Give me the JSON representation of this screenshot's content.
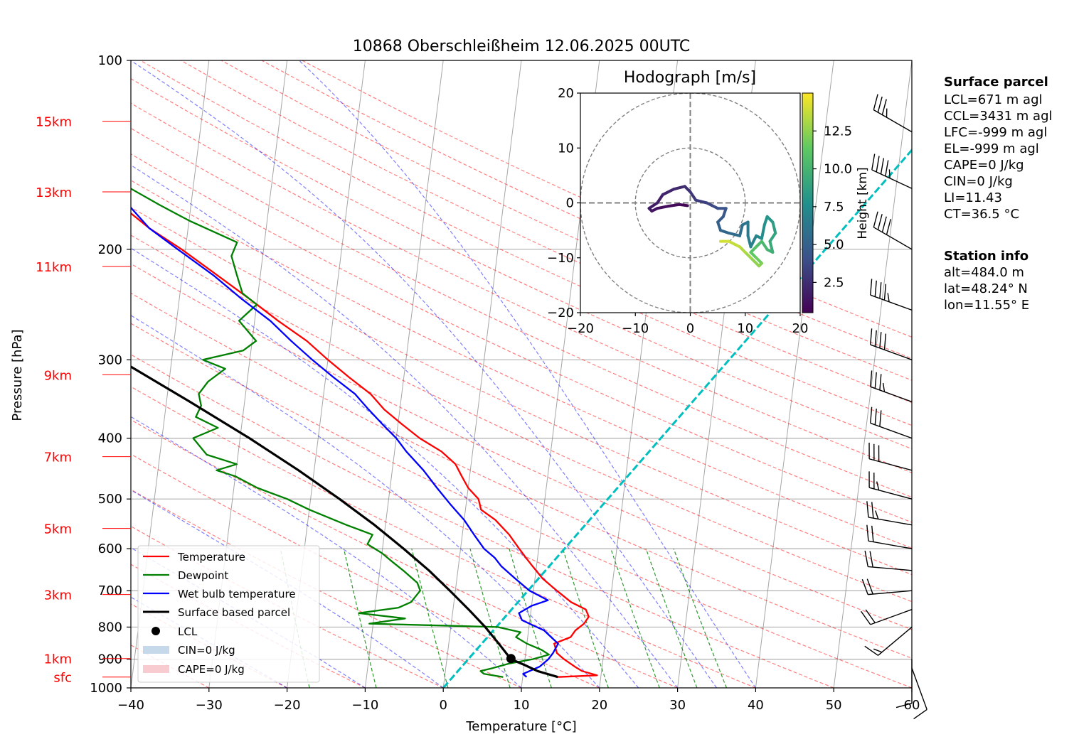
{
  "chart_data": {
    "type": "line",
    "title": "10868 Oberschleißheim 12.06.2025 00UTC",
    "xlabel": "Temperature [°C]",
    "ylabel": "Pressure [hPa]",
    "xlim": [
      -40,
      60
    ],
    "ylim": [
      1000,
      100
    ],
    "y_scale": "log",
    "x_ticks": [
      "−40",
      "−30",
      "−20",
      "−10",
      "0",
      "10",
      "20",
      "30",
      "40",
      "50",
      "60"
    ],
    "y_ticks": [
      "100",
      "200",
      "300",
      "400",
      "500",
      "600",
      "700",
      "800",
      "900",
      "1000"
    ],
    "height_labels": [
      {
        "label": "15km",
        "p": 125
      },
      {
        "label": "13km",
        "p": 162
      },
      {
        "label": "11km",
        "p": 213
      },
      {
        "label": "9km",
        "p": 317
      },
      {
        "label": "7km",
        "p": 428
      },
      {
        "label": "5km",
        "p": 557
      },
      {
        "label": "3km",
        "p": 710
      },
      {
        "label": "1km",
        "p": 898
      },
      {
        "label": "sfc",
        "p": 961
      }
    ],
    "height_label_color": "#ff0000",
    "grid": true,
    "legend_position": "lower-left",
    "series": [
      {
        "name": "Temperature",
        "color": "#ff0000",
        "points": [
          [
            961,
            14.5
          ],
          [
            955,
            19.5
          ],
          [
            940,
            17.5
          ],
          [
            925,
            16.5
          ],
          [
            900,
            15.0
          ],
          [
            880,
            14.0
          ],
          [
            850,
            13.5
          ],
          [
            830,
            15.5
          ],
          [
            810,
            16.0
          ],
          [
            790,
            17.0
          ],
          [
            770,
            17.5
          ],
          [
            750,
            17.0
          ],
          [
            730,
            15.0
          ],
          [
            700,
            13.0
          ],
          [
            670,
            11.0
          ],
          [
            640,
            9.5
          ],
          [
            620,
            8.5
          ],
          [
            600,
            7.5
          ],
          [
            570,
            6.0
          ],
          [
            540,
            4.0
          ],
          [
            520,
            2.0
          ],
          [
            500,
            1.5
          ],
          [
            480,
            0.0
          ],
          [
            460,
            -1.0
          ],
          [
            440,
            -2.0
          ],
          [
            420,
            -4.0
          ],
          [
            400,
            -7.0
          ],
          [
            380,
            -9.5
          ],
          [
            360,
            -12.0
          ],
          [
            340,
            -14.0
          ],
          [
            320,
            -17.0
          ],
          [
            300,
            -20.0
          ],
          [
            280,
            -23.0
          ],
          [
            260,
            -27.0
          ],
          [
            240,
            -31.0
          ],
          [
            220,
            -35.5
          ],
          [
            200,
            -40.5
          ],
          [
            185,
            -45.0
          ],
          [
            170,
            -49.0
          ],
          [
            160,
            -51.0
          ],
          [
            150,
            -54.0
          ],
          [
            140,
            -56.0
          ],
          [
            130,
            -57.0
          ],
          [
            124,
            -58.0
          ]
        ]
      },
      {
        "name": "Dewpoint",
        "color": "#008000",
        "points": [
          [
            961,
            7.5
          ],
          [
            950,
            5.0
          ],
          [
            940,
            4.5
          ],
          [
            930,
            6.0
          ],
          [
            915,
            8.0
          ],
          [
            900,
            11.0
          ],
          [
            885,
            13.0
          ],
          [
            870,
            12.0
          ],
          [
            850,
            10.0
          ],
          [
            830,
            8.5
          ],
          [
            815,
            9.0
          ],
          [
            800,
            6.0
          ],
          [
            790,
            -10.5
          ],
          [
            775,
            -6.0
          ],
          [
            760,
            -12.0
          ],
          [
            745,
            -7.0
          ],
          [
            730,
            -5.5
          ],
          [
            700,
            -4.5
          ],
          [
            680,
            -5.0
          ],
          [
            650,
            -7.0
          ],
          [
            630,
            -8.5
          ],
          [
            610,
            -10.0
          ],
          [
            590,
            -12.0
          ],
          [
            570,
            -11.5
          ],
          [
            550,
            -15.0
          ],
          [
            520,
            -20.0
          ],
          [
            500,
            -23.0
          ],
          [
            480,
            -27.0
          ],
          [
            460,
            -30.0
          ],
          [
            450,
            -32.5
          ],
          [
            440,
            -30.0
          ],
          [
            425,
            -34.0
          ],
          [
            400,
            -36.0
          ],
          [
            385,
            -33.0
          ],
          [
            370,
            -36.0
          ],
          [
            355,
            -35.5
          ],
          [
            340,
            -36.0
          ],
          [
            325,
            -35.0
          ],
          [
            310,
            -33.0
          ],
          [
            300,
            -36.0
          ],
          [
            290,
            -31.0
          ],
          [
            280,
            -29.5
          ],
          [
            260,
            -32.0
          ],
          [
            245,
            -30.0
          ],
          [
            235,
            -32.0
          ],
          [
            220,
            -33.0
          ],
          [
            205,
            -34.0
          ],
          [
            195,
            -33.5
          ],
          [
            180,
            -40.0
          ],
          [
            170,
            -44.0
          ],
          [
            160,
            -48.0
          ],
          [
            150,
            -52.0
          ],
          [
            140,
            -57.0
          ],
          [
            130,
            -62.0
          ],
          [
            124,
            -63.5
          ]
        ]
      },
      {
        "name": "Wet bulb temperature",
        "color": "#0000ff",
        "points": [
          [
            961,
            10.5
          ],
          [
            950,
            10.0
          ],
          [
            925,
            12.0
          ],
          [
            900,
            13.0
          ],
          [
            880,
            13.5
          ],
          [
            850,
            14.0
          ],
          [
            830,
            13.0
          ],
          [
            810,
            12.0
          ],
          [
            795,
            10.5
          ],
          [
            780,
            9.0
          ],
          [
            760,
            8.5
          ],
          [
            740,
            10.0
          ],
          [
            725,
            12.0
          ],
          [
            700,
            9.5
          ],
          [
            670,
            7.5
          ],
          [
            640,
            5.5
          ],
          [
            620,
            4.5
          ],
          [
            600,
            3.0
          ],
          [
            570,
            1.5
          ],
          [
            540,
            0.0
          ],
          [
            510,
            -2.0
          ],
          [
            480,
            -4.0
          ],
          [
            450,
            -6.0
          ],
          [
            420,
            -8.5
          ],
          [
            400,
            -10.0
          ],
          [
            380,
            -12.0
          ],
          [
            360,
            -14.0
          ],
          [
            340,
            -16.0
          ],
          [
            320,
            -19.0
          ],
          [
            300,
            -22.0
          ],
          [
            280,
            -25.0
          ],
          [
            260,
            -28.0
          ],
          [
            240,
            -32.0
          ],
          [
            220,
            -36.0
          ],
          [
            200,
            -41.0
          ],
          [
            185,
            -45.0
          ],
          [
            170,
            -48.0
          ],
          [
            160,
            -51.0
          ],
          [
            150,
            -54.5
          ],
          [
            140,
            -56.0
          ],
          [
            130,
            -57.5
          ],
          [
            124,
            -58.5
          ]
        ]
      },
      {
        "name": "Surface based parcel",
        "color": "#000000",
        "points": [
          [
            961,
            14.5
          ],
          [
            940,
            11.8
          ],
          [
            920,
            10.1
          ],
          [
            900,
            8.2
          ],
          [
            880,
            7.5
          ],
          [
            850,
            6.4
          ],
          [
            800,
            4.4
          ],
          [
            750,
            2.0
          ],
          [
            700,
            -0.7
          ],
          [
            650,
            -3.7
          ],
          [
            600,
            -7.3
          ],
          [
            550,
            -11.4
          ],
          [
            500,
            -16.3
          ],
          [
            450,
            -22.0
          ],
          [
            400,
            -28.8
          ],
          [
            350,
            -37.0
          ],
          [
            300,
            -46.7
          ],
          [
            250,
            -58.3
          ],
          [
            200,
            -72.4
          ],
          [
            150,
            -90.0
          ],
          [
            130,
            -98.0
          ]
        ]
      }
    ],
    "lcl": {
      "name": "LCL",
      "p": 898,
      "t": 8.2,
      "color": "#000000"
    },
    "cin_label": "CIN=0 J/kg",
    "cape_label": "CAPE=0 J/kg",
    "cin_color": "#9ec0dc",
    "cape_color": "#f2a9b0",
    "cyan_line": {
      "color": "#00bfbf",
      "points": [
        [
          1000,
          0
        ],
        [
          100,
          60
        ]
      ]
    },
    "dry_adiabat_color": "#ff0000",
    "moist_adiabat_color": "#0000ff",
    "mixing_ratio_color": "#008000",
    "isotherm_color": "#808080",
    "wind_barbs": [
      {
        "p": 130,
        "spd_kt": 35,
        "dir": 300
      },
      {
        "p": 160,
        "spd_kt": 45,
        "dir": 295
      },
      {
        "p": 200,
        "spd_kt": 40,
        "dir": 300
      },
      {
        "p": 250,
        "spd_kt": 45,
        "dir": 290
      },
      {
        "p": 300,
        "spd_kt": 40,
        "dir": 290
      },
      {
        "p": 350,
        "spd_kt": 35,
        "dir": 290
      },
      {
        "p": 400,
        "spd_kt": 30,
        "dir": 290
      },
      {
        "p": 450,
        "spd_kt": 30,
        "dir": 285
      },
      {
        "p": 500,
        "spd_kt": 25,
        "dir": 285
      },
      {
        "p": 550,
        "spd_kt": 25,
        "dir": 280
      },
      {
        "p": 600,
        "spd_kt": 20,
        "dir": 280
      },
      {
        "p": 650,
        "spd_kt": 20,
        "dir": 275
      },
      {
        "p": 700,
        "spd_kt": 20,
        "dir": 265
      },
      {
        "p": 750,
        "spd_kt": 20,
        "dir": 250
      },
      {
        "p": 800,
        "spd_kt": 15,
        "dir": 230
      },
      {
        "p": 900,
        "spd_kt": 10,
        "dir": 180
      },
      {
        "p": 930,
        "spd_kt": 10,
        "dir": 160
      }
    ],
    "hodograph": {
      "title": "Hodograph [m/s]",
      "xlim": [
        -20,
        20
      ],
      "ylim": [
        -20,
        20
      ],
      "ticks": [
        "−20",
        "−10",
        "0",
        "10",
        "20"
      ],
      "rings": [
        10,
        20
      ],
      "colorbar_label": "Height [km]",
      "colorbar_ticks": [
        "2.5",
        "5.0",
        "7.5",
        "10.0",
        "12.5"
      ],
      "colorbar_range": [
        0.5,
        15
      ],
      "points": [
        [
          -0.5,
          -0.5,
          0.5
        ],
        [
          -2,
          -0.3,
          0.7
        ],
        [
          -4,
          -0.6,
          0.9
        ],
        [
          -6,
          -1,
          1.1
        ],
        [
          -7,
          -1.5,
          1.3
        ],
        [
          -7.5,
          -1,
          1.5
        ],
        [
          -6,
          0,
          1.7
        ],
        [
          -5,
          1.5,
          1.9
        ],
        [
          -3,
          2.5,
          2.1
        ],
        [
          -1,
          3,
          2.3
        ],
        [
          0,
          2,
          2.6
        ],
        [
          1,
          0.5,
          2.9
        ],
        [
          3,
          0,
          3.2
        ],
        [
          4,
          -0.5,
          3.5
        ],
        [
          5,
          -1,
          3.8
        ],
        [
          6.5,
          -1,
          4.1
        ],
        [
          6,
          -2.5,
          4.4
        ],
        [
          5,
          -3.5,
          4.6
        ],
        [
          5.5,
          -5,
          4.9
        ],
        [
          7,
          -5.5,
          5.2
        ],
        [
          9,
          -6,
          5.5
        ],
        [
          9.5,
          -4,
          5.7
        ],
        [
          10.5,
          -3.5,
          6.0
        ],
        [
          10.5,
          -6,
          6.3
        ],
        [
          11,
          -8,
          6.6
        ],
        [
          12,
          -6,
          6.9
        ],
        [
          13,
          -6.5,
          7.2
        ],
        [
          13.5,
          -4,
          7.5
        ],
        [
          14,
          -2.5,
          7.8
        ],
        [
          15,
          -3.5,
          8.1
        ],
        [
          15.5,
          -5.5,
          8.5
        ],
        [
          14.5,
          -7,
          8.9
        ],
        [
          15,
          -9,
          9.3
        ],
        [
          14,
          -8.5,
          9.7
        ],
        [
          13,
          -7,
          10.1
        ],
        [
          12,
          -8,
          10.5
        ],
        [
          11,
          -9,
          10.9
        ],
        [
          12,
          -10,
          11.3
        ],
        [
          13,
          -11,
          11.7
        ],
        [
          12.5,
          -11.5,
          12.1
        ],
        [
          11,
          -10,
          12.5
        ],
        [
          10,
          -9,
          12.9
        ],
        [
          9,
          -8,
          13.3
        ],
        [
          7,
          -7,
          13.7
        ],
        [
          5.5,
          -7,
          14.0
        ]
      ]
    },
    "surface_parcel": {
      "heading": "Surface parcel",
      "lines": [
        "LCL=671 m agl",
        "CCL=3431 m agl",
        "LFC=-999 m agl",
        "EL=-999 m agl",
        "CAPE=0 J/kg",
        "CIN=0 J/kg",
        "LI=11.43",
        "CT=36.5 °C"
      ]
    },
    "station_info": {
      "heading": "Station info",
      "lines": [
        "alt=484.0 m",
        "lat=48.24° N",
        "lon=11.55° E"
      ]
    }
  }
}
